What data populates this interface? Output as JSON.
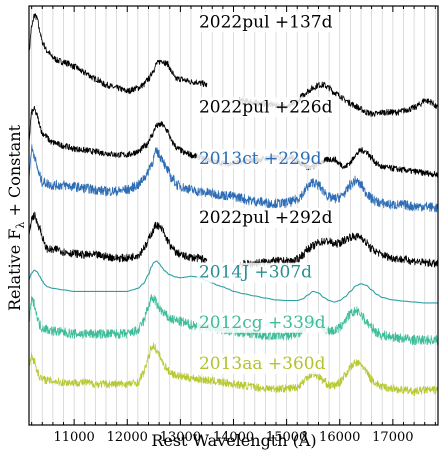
{
  "chart_data": {
    "type": "line",
    "xlabel": "Rest Wavelength (Å)",
    "ylabel": "Relative F",
    "ylabel_sub": "λ",
    "ylabel_suffix": " + Constant",
    "xlim": [
      10150,
      17850
    ],
    "xticks": [
      11000,
      12000,
      13000,
      14000,
      15000,
      16000,
      17000
    ],
    "xtick_labels": [
      "11000",
      "12000",
      "13000",
      "14000",
      "15000",
      "16000",
      "17000"
    ],
    "grid": "vertical",
    "gap": [
      13500,
      14100
    ],
    "series": [
      {
        "name": "2022pul +137d",
        "color": "#000000",
        "offset": 0.0,
        "noise": 0.1,
        "gap": true,
        "x": [
          10150,
          10200,
          10250,
          10300,
          10350,
          10400,
          10500,
          10600,
          10700,
          10800,
          10900,
          11000,
          11200,
          11400,
          11600,
          11800,
          12000,
          12200,
          12300,
          12400,
          12500,
          12550,
          12650,
          12750,
          12850,
          12900,
          13000,
          13100,
          13200,
          13300,
          13400,
          13500,
          14100,
          14300,
          14500,
          14700,
          14900,
          15000,
          15100,
          15200,
          15300,
          15400,
          15500,
          15600,
          15700,
          15800,
          15900,
          16000,
          16100,
          16200,
          16300,
          16400,
          16500,
          16600,
          16700,
          16800,
          16900,
          17000,
          17100,
          17200,
          17300,
          17400,
          17500,
          17600,
          17700,
          17850
        ],
        "y": [
          9.4,
          10.2,
          10.6,
          10.5,
          10.1,
          9.7,
          9.4,
          9.2,
          9.1,
          9.05,
          9.0,
          8.9,
          8.7,
          8.5,
          8.3,
          8.2,
          8.1,
          8.2,
          8.3,
          8.5,
          8.8,
          9.0,
          9.1,
          9.0,
          8.7,
          8.5,
          8.5,
          8.45,
          8.4,
          8.4,
          8.35,
          8.3,
          7.8,
          7.75,
          7.7,
          7.65,
          7.6,
          7.6,
          7.65,
          7.75,
          7.95,
          8.1,
          8.2,
          8.3,
          8.3,
          8.2,
          8.05,
          7.95,
          7.8,
          7.7,
          7.6,
          7.5,
          7.4,
          7.35,
          7.35,
          7.4,
          7.4,
          7.4,
          7.4,
          7.45,
          7.5,
          7.55,
          7.65,
          7.8,
          7.75,
          7.55
        ]
      },
      {
        "name": "2022pul +226d",
        "color": "#000000",
        "offset": 0.0,
        "noise": 0.1,
        "gap": false,
        "x": [
          10150,
          10200,
          10250,
          10300,
          10350,
          10400,
          10600,
          10800,
          11000,
          11200,
          11400,
          11600,
          11800,
          12000,
          12200,
          12350,
          12450,
          12550,
          12650,
          12750,
          12850,
          12950,
          13100,
          13300,
          13500,
          13700,
          13900,
          14100,
          14300,
          14500,
          14700,
          14900,
          15100,
          15200,
          15300,
          15400,
          15500,
          15600,
          15700,
          15800,
          15900,
          16000,
          16100,
          16200,
          16300,
          16400,
          16500,
          16600,
          16700,
          16800,
          17000,
          17200,
          17400,
          17600,
          17850
        ],
        "y": [
          6.5,
          7.4,
          7.5,
          7.3,
          7.0,
          6.7,
          6.4,
          6.3,
          6.2,
          6.15,
          6.1,
          6.05,
          6.0,
          6.0,
          6.1,
          6.3,
          6.6,
          6.95,
          7.0,
          6.8,
          6.4,
          6.2,
          6.05,
          5.95,
          5.85,
          5.75,
          5.7,
          5.75,
          5.8,
          5.85,
          5.9,
          5.9,
          5.9,
          5.8,
          5.7,
          5.6,
          5.6,
          5.7,
          5.8,
          5.85,
          5.85,
          5.7,
          5.6,
          5.75,
          6.0,
          6.15,
          6.1,
          5.9,
          5.7,
          5.6,
          5.55,
          5.5,
          5.45,
          5.4,
          5.35
        ]
      },
      {
        "name": "2013ct +229d",
        "color": "#2d6db5",
        "offset": 0.0,
        "noise": 0.16,
        "gap": false,
        "x": [
          10150,
          10200,
          10250,
          10300,
          10350,
          10400,
          10600,
          10800,
          11000,
          11200,
          11400,
          11600,
          11800,
          12000,
          12200,
          12350,
          12450,
          12550,
          12650,
          12750,
          12850,
          12950,
          13100,
          13300,
          13500,
          13700,
          13900,
          14100,
          14300,
          14500,
          14700,
          14900,
          15100,
          15200,
          15300,
          15400,
          15500,
          15600,
          15700,
          15800,
          15900,
          16000,
          16100,
          16200,
          16300,
          16400,
          16500,
          16600,
          16700,
          16800,
          17000,
          17200,
          17400,
          17600,
          17850
        ],
        "y": [
          5.3,
          6.2,
          6.0,
          5.6,
          5.3,
          5.1,
          5.0,
          5.0,
          4.95,
          4.9,
          4.85,
          4.8,
          4.8,
          4.85,
          5.0,
          5.3,
          5.7,
          6.1,
          5.9,
          5.5,
          5.2,
          5.0,
          4.9,
          4.8,
          4.75,
          4.7,
          4.65,
          4.6,
          4.5,
          4.45,
          4.4,
          4.4,
          4.45,
          4.55,
          4.7,
          4.95,
          5.1,
          5.0,
          4.8,
          4.6,
          4.55,
          4.6,
          4.75,
          5.0,
          5.15,
          5.0,
          4.75,
          4.55,
          4.45,
          4.4,
          4.35,
          4.35,
          4.3,
          4.3,
          4.25
        ]
      },
      {
        "name": "2022pul +292d",
        "color": "#000000",
        "offset": 0.0,
        "noise": 0.13,
        "gap": true,
        "x": [
          10150,
          10200,
          10250,
          10300,
          10350,
          10400,
          10450,
          10500,
          10600,
          10700,
          10800,
          11000,
          11200,
          11400,
          11600,
          11800,
          12000,
          12200,
          12350,
          12450,
          12550,
          12650,
          12750,
          12850,
          12950,
          13100,
          13300,
          13500,
          14100,
          14300,
          14500,
          14700,
          14900,
          15100,
          15200,
          15300,
          15400,
          15500,
          15600,
          15700,
          15800,
          15900,
          16000,
          16100,
          16200,
          16300,
          16400,
          16500,
          16600,
          16700,
          16800,
          17000,
          17200,
          17400,
          17600,
          17850
        ],
        "y": [
          3.3,
          3.9,
          4.0,
          3.8,
          3.6,
          3.3,
          3.0,
          2.9,
          2.85,
          2.9,
          2.8,
          2.75,
          2.7,
          2.7,
          2.65,
          2.6,
          2.6,
          2.7,
          3.0,
          3.4,
          3.7,
          3.55,
          3.2,
          2.9,
          2.75,
          2.65,
          2.6,
          2.55,
          2.4,
          2.4,
          2.45,
          2.5,
          2.5,
          2.5,
          2.55,
          2.7,
          2.9,
          3.0,
          3.1,
          3.15,
          3.15,
          3.05,
          3.1,
          3.2,
          3.3,
          3.3,
          3.3,
          3.1,
          2.9,
          2.8,
          2.7,
          2.6,
          2.55,
          2.5,
          2.45,
          2.4
        ]
      },
      {
        "name": "2014J +307d",
        "color": "#2aa0a4",
        "offset": 0.0,
        "noise": 0.0,
        "gap": false,
        "x": [
          10150,
          10200,
          10250,
          10300,
          10350,
          10400,
          10450,
          10500,
          10600,
          10800,
          11000,
          11200,
          11400,
          11600,
          11800,
          12000,
          12100,
          12200,
          12300,
          12400,
          12450,
          12500,
          12550,
          12600,
          12650,
          12700,
          12800,
          12900,
          13000,
          13100,
          13200,
          13300,
          13400,
          13500,
          13600,
          13700,
          13800,
          13900,
          14000,
          14200,
          14400,
          14600,
          14800,
          15000,
          15200,
          15300,
          15400,
          15500,
          15600,
          15700,
          15800,
          15900,
          16000,
          16100,
          16200,
          16300,
          16400,
          16500,
          16600,
          16700,
          16800,
          17000,
          17200,
          17400,
          17600,
          17850
        ],
        "y": [
          1.9,
          2.1,
          2.2,
          2.15,
          2.0,
          1.85,
          1.72,
          1.65,
          1.6,
          1.55,
          1.5,
          1.5,
          1.5,
          1.5,
          1.5,
          1.5,
          1.55,
          1.6,
          1.75,
          2.05,
          2.3,
          2.45,
          2.5,
          2.42,
          2.3,
          2.18,
          2.05,
          1.98,
          1.95,
          1.97,
          2.0,
          1.98,
          1.92,
          1.85,
          1.78,
          1.7,
          1.65,
          1.58,
          1.5,
          1.42,
          1.35,
          1.28,
          1.22,
          1.2,
          1.2,
          1.25,
          1.38,
          1.5,
          1.45,
          1.3,
          1.2,
          1.15,
          1.2,
          1.32,
          1.5,
          1.68,
          1.75,
          1.7,
          1.55,
          1.4,
          1.3,
          1.22,
          1.18,
          1.15,
          1.12,
          1.12
        ]
      },
      {
        "name": "2012cg +339d",
        "color": "#3dbd9a",
        "offset": 0.0,
        "noise": 0.16,
        "gap": false,
        "x": [
          10150,
          10200,
          10250,
          10300,
          10350,
          10400,
          10600,
          10800,
          11000,
          11200,
          11400,
          11600,
          11800,
          12000,
          12200,
          12300,
          12400,
          12450,
          12500,
          12600,
          12700,
          12800,
          12900,
          13000,
          13200,
          13400,
          13600,
          13800,
          14000,
          14200,
          14400,
          14600,
          14800,
          15000,
          15200,
          15300,
          15400,
          15500,
          15600,
          15700,
          15800,
          15900,
          16000,
          16100,
          16200,
          16300,
          16400,
          16500,
          16600,
          16700,
          16800,
          17000,
          17200,
          17400,
          17600,
          17850
        ],
        "y": [
          0.5,
          1.2,
          1.1,
          0.7,
          0.4,
          0.3,
          0.2,
          0.15,
          0.1,
          0.1,
          0.1,
          0.1,
          0.1,
          0.1,
          0.2,
          0.5,
          1.0,
          1.25,
          1.25,
          0.95,
          0.75,
          0.6,
          0.55,
          0.5,
          0.4,
          0.35,
          0.3,
          0.25,
          0.2,
          0.15,
          0.1,
          0.05,
          0.05,
          0.05,
          0.1,
          0.2,
          0.45,
          0.55,
          0.45,
          0.3,
          0.2,
          0.2,
          0.3,
          0.55,
          0.75,
          0.85,
          0.75,
          0.5,
          0.3,
          0.15,
          0.05,
          0.0,
          -0.05,
          -0.1,
          -0.1,
          -0.1
        ]
      },
      {
        "name": "2013aa +360d",
        "color": "#b8c934",
        "offset": 0.0,
        "noise": 0.13,
        "gap": false,
        "x": [
          10150,
          10200,
          10250,
          10300,
          10350,
          10400,
          10600,
          10800,
          11000,
          11200,
          11400,
          11600,
          11800,
          12000,
          12200,
          12300,
          12400,
          12450,
          12500,
          12600,
          12700,
          12800,
          12900,
          13000,
          13200,
          13400,
          13600,
          13800,
          14000,
          14200,
          14400,
          14600,
          14800,
          15000,
          15200,
          15300,
          15400,
          15500,
          15600,
          15700,
          15800,
          15900,
          16000,
          16100,
          16200,
          16300,
          16400,
          16500,
          16600,
          16700,
          16800,
          17000,
          17200,
          17400,
          17600,
          17850
        ],
        "y": [
          -1.0,
          -0.6,
          -0.8,
          -1.1,
          -1.3,
          -1.4,
          -1.45,
          -1.5,
          -1.5,
          -1.5,
          -1.55,
          -1.55,
          -1.55,
          -1.55,
          -1.5,
          -1.2,
          -0.7,
          -0.35,
          -0.3,
          -0.6,
          -0.95,
          -1.15,
          -1.25,
          -1.3,
          -1.35,
          -1.4,
          -1.45,
          -1.5,
          -1.55,
          -1.6,
          -1.65,
          -1.7,
          -1.7,
          -1.7,
          -1.65,
          -1.5,
          -1.3,
          -1.2,
          -1.3,
          -1.45,
          -1.6,
          -1.6,
          -1.5,
          -1.25,
          -1.0,
          -0.85,
          -0.9,
          -1.15,
          -1.4,
          -1.55,
          -1.65,
          -1.7,
          -1.75,
          -1.8,
          -1.75,
          -1.75
        ]
      }
    ],
    "annotations": [
      {
        "text": "2022pul +137d",
        "color": "#000000",
        "x": 13350,
        "y": 10.2
      },
      {
        "text": "2022pul +226d",
        "color": "#000000",
        "x": 13350,
        "y": 7.4
      },
      {
        "text": "2013ct +229d",
        "color": "#2d6db5",
        "x": 13350,
        "y": 5.7
      },
      {
        "text": "2022pul +292d",
        "color": "#000000",
        "x": 13350,
        "y": 3.75
      },
      {
        "text": "2014J +307d",
        "color": "#2a8f94",
        "x": 13350,
        "y": 1.95
      },
      {
        "text": "2012cg +339d",
        "color": "#3dbd9a",
        "x": 13350,
        "y": 0.3
      },
      {
        "text": "2013aa +360d",
        "color": "#b3c22f",
        "x": 13350,
        "y": -1.05
      }
    ],
    "ylim": [
      -2.9,
      10.9
    ]
  }
}
